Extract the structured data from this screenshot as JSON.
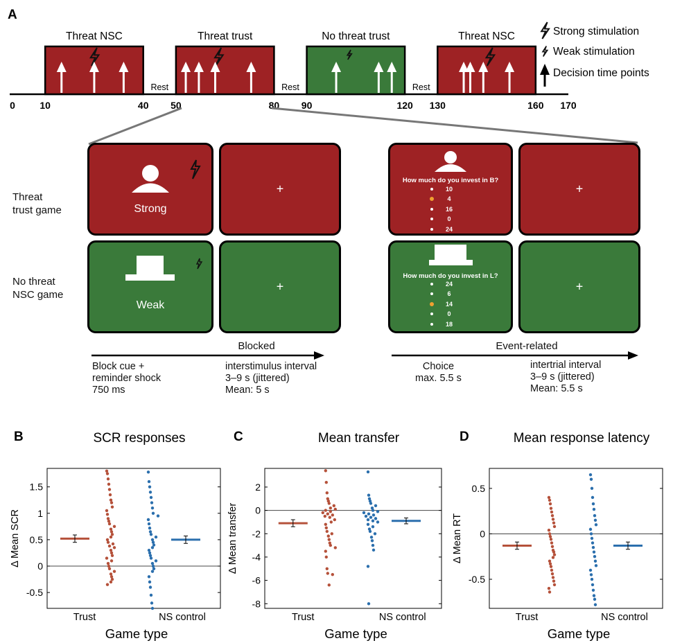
{
  "panel_a": {
    "letter": "A",
    "blocks": [
      {
        "label": "Threat NSC",
        "kind": "threat",
        "start": 10,
        "end": 40,
        "bolt": "strong",
        "bolt_at": 25,
        "arrows": [
          15,
          25,
          34
        ]
      },
      {
        "label": "Threat trust",
        "kind": "threat",
        "start": 50,
        "end": 80,
        "bolt": "strong",
        "bolt_at": 63,
        "arrows": [
          53,
          57,
          62,
          73
        ]
      },
      {
        "label": "No threat trust",
        "kind": "nothreat",
        "start": 90,
        "end": 120,
        "bolt": "weak",
        "bolt_at": 103,
        "arrows": [
          99,
          112,
          116
        ]
      },
      {
        "label": "Threat NSC",
        "kind": "threat",
        "start": 130,
        "end": 160,
        "bolt": "strong",
        "bolt_at": 146,
        "arrows": [
          138,
          140,
          144,
          152
        ]
      }
    ],
    "rests": [
      {
        "label": "Rest",
        "at": 45
      },
      {
        "label": "Rest",
        "at": 85
      },
      {
        "label": "Rest",
        "at": 125
      }
    ],
    "ticks": [
      "0",
      "10",
      "40",
      "50",
      "80",
      "90",
      "120",
      "130",
      "160",
      "170"
    ],
    "legend": {
      "strong": "Strong stimulation",
      "weak": "Weak stimulation",
      "decision": "Decision time points"
    },
    "colors": {
      "threat": "#9e2224",
      "nothreat": "#3a7a3a"
    },
    "rows": {
      "threat": "Threat\ntrust game",
      "nothreat": "No threat\nNSC game"
    },
    "cue_threat": "Strong",
    "cue_nothreat": "Weak",
    "fixation": "+",
    "q_threat": "How much do you invest in B?",
    "opts_threat": [
      "10",
      "4",
      "16",
      "0",
      "24"
    ],
    "sel_threat": 1,
    "q_nothreat": "How much do you invest in L?",
    "opts_nothreat": [
      "24",
      "6",
      "14",
      "0",
      "18"
    ],
    "sel_nothreat": 2,
    "blocked": "Blocked",
    "event_related": "Event-related",
    "blocked_cue": "Block cue +\nreminder shock\n750 ms",
    "blocked_isi": "interstimulus interval\n3–9 s (jittered)\nMean: 5 s",
    "event_choice": "Choice\nmax. 5.5 s",
    "event_iti": "intertrial interval\n3–9 s (jittered)\nMean: 5.5 s"
  },
  "chart_data": [
    {
      "type": "scatter",
      "panel": "B",
      "title": "SCR responses",
      "xlabel": "Game type",
      "ylabel": "Δ Mean SCR",
      "categories": [
        "Trust",
        "NS control"
      ],
      "ylim": [
        -0.8,
        1.85
      ],
      "yticks": [
        -0.5,
        0,
        0.5,
        1,
        1.5
      ],
      "ytick_labels": [
        "-0.5",
        "0",
        "0.5",
        "1",
        "1.5"
      ],
      "series": [
        {
          "category": "Trust",
          "color": "#b5513a",
          "mean": 0.52,
          "sem": 0.07,
          "values": [
            1.8,
            1.75,
            1.65,
            1.55,
            1.45,
            1.35,
            1.25,
            1.2,
            1.12,
            1.05,
            0.98,
            0.9,
            0.85,
            0.8,
            0.75,
            0.7,
            0.65,
            0.6,
            0.55,
            0.5,
            0.45,
            0.42,
            0.38,
            0.35,
            0.3,
            0.25,
            0.2,
            0.15,
            0.1,
            0.05,
            0.0,
            -0.05,
            -0.1,
            -0.15,
            -0.2,
            -0.25,
            -0.3,
            -0.35
          ]
        },
        {
          "category": "NS control",
          "color": "#2b6fad",
          "mean": 0.5,
          "sem": 0.07,
          "values": [
            1.78,
            1.6,
            1.5,
            1.4,
            1.3,
            1.2,
            1.1,
            1.0,
            0.95,
            0.88,
            0.8,
            0.72,
            0.65,
            0.6,
            0.55,
            0.5,
            0.45,
            0.4,
            0.35,
            0.3,
            0.25,
            0.2,
            0.15,
            0.1,
            0.05,
            0.0,
            -0.05,
            -0.1,
            -0.2,
            -0.3,
            -0.4,
            -0.55,
            -0.7,
            -0.8
          ]
        }
      ]
    },
    {
      "type": "scatter",
      "panel": "C",
      "title": "Mean transfer",
      "xlabel": "Game type",
      "ylabel": "Δ Mean transfer",
      "categories": [
        "Trust",
        "NS control"
      ],
      "ylim": [
        -8.4,
        3.6
      ],
      "yticks": [
        -8,
        -6,
        -4,
        -2,
        0,
        2
      ],
      "ytick_labels": [
        "-8",
        "-6",
        "-4",
        "-2",
        "0",
        "2"
      ],
      "series": [
        {
          "category": "Trust",
          "color": "#b5513a",
          "mean": -1.1,
          "sem": 0.3,
          "values": [
            3.4,
            2.4,
            1.5,
            1.0,
            0.8,
            0.6,
            0.4,
            0.2,
            0.1,
            0.0,
            -0.1,
            -0.2,
            -0.3,
            -0.4,
            -0.5,
            -0.6,
            -0.8,
            -1.0,
            -1.2,
            -1.5,
            -1.8,
            -2.0,
            -2.2,
            -2.5,
            -2.8,
            -3.0,
            -3.2,
            -3.5,
            -4.0,
            -5.0,
            -5.4,
            -5.5,
            -6.4
          ]
        },
        {
          "category": "NS control",
          "color": "#2b6fad",
          "mean": -0.9,
          "sem": 0.25,
          "values": [
            3.3,
            1.3,
            1.0,
            0.8,
            0.6,
            0.4,
            0.2,
            0.0,
            -0.1,
            -0.2,
            -0.3,
            -0.4,
            -0.5,
            -0.6,
            -0.7,
            -0.8,
            -0.9,
            -1.0,
            -1.2,
            -1.4,
            -1.6,
            -1.8,
            -2.0,
            -2.3,
            -2.6,
            -3.0,
            -3.4,
            -4.8,
            -8.0
          ]
        }
      ]
    },
    {
      "type": "scatter",
      "panel": "D",
      "title": "Mean response latency",
      "xlabel": "Game type",
      "ylabel": "Δ Mean RT",
      "categories": [
        "Trust",
        "NS control"
      ],
      "ylim": [
        -0.82,
        0.72
      ],
      "yticks": [
        -0.5,
        0,
        0.5
      ],
      "ytick_labels": [
        "-0.5",
        "0",
        "0.5"
      ],
      "series": [
        {
          "category": "Trust",
          "color": "#b5513a",
          "mean": -0.13,
          "sem": 0.04,
          "values": [
            0.4,
            0.37,
            0.33,
            0.28,
            0.24,
            0.2,
            0.16,
            0.12,
            0.08,
            0.04,
            0.0,
            -0.03,
            -0.06,
            -0.1,
            -0.14,
            -0.18,
            -0.2,
            -0.23,
            -0.26,
            -0.3,
            -0.33,
            -0.36,
            -0.4,
            -0.44,
            -0.48,
            -0.52,
            -0.56,
            -0.6,
            -0.64
          ]
        },
        {
          "category": "NS control",
          "color": "#2b6fad",
          "mean": -0.13,
          "sem": 0.04,
          "values": [
            0.65,
            0.6,
            0.5,
            0.4,
            0.33,
            0.27,
            0.2,
            0.15,
            0.1,
            0.05,
            0.0,
            -0.05,
            -0.1,
            -0.15,
            -0.2,
            -0.25,
            -0.3,
            -0.35,
            -0.4,
            -0.45,
            -0.5,
            -0.56,
            -0.62,
            -0.68,
            -0.72,
            -0.78
          ]
        }
      ]
    }
  ],
  "panel_letters": {
    "b": "B",
    "c": "C",
    "d": "D"
  }
}
